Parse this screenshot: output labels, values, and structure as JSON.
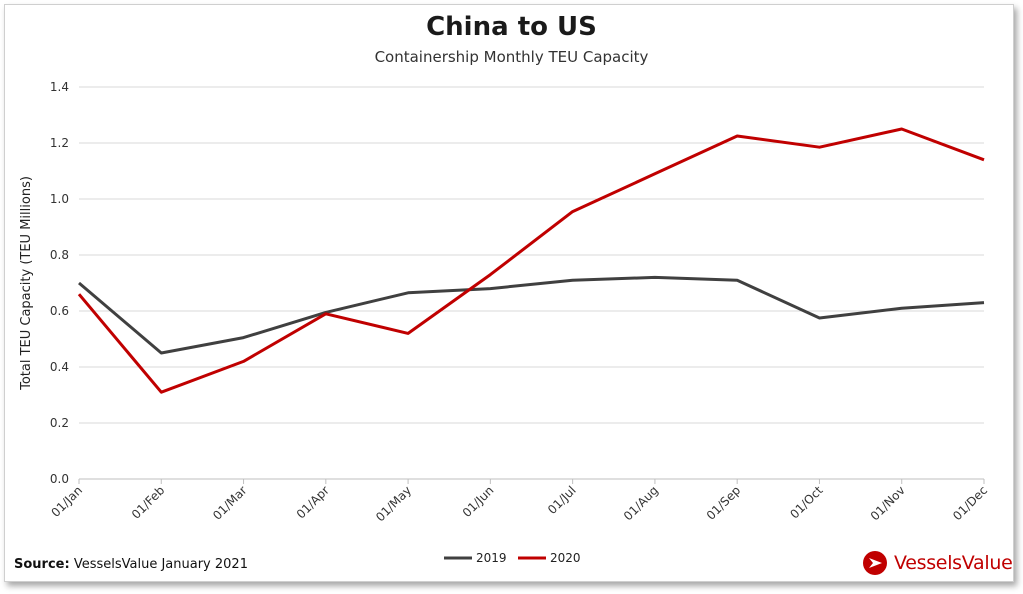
{
  "chart_data": {
    "type": "line",
    "title": "China to US",
    "subtitle": "Containership Monthly TEU Capacity",
    "xlabel": "",
    "ylabel": "Total TEU Capacity (TEU Millions)",
    "categories": [
      "01/Jan",
      "01/Feb",
      "01/Mar",
      "01/Apr",
      "01/May",
      "01/Jun",
      "01/Jul",
      "01/Aug",
      "01/Sep",
      "01/Oct",
      "01/Nov",
      "01/Dec"
    ],
    "ylim": [
      0,
      1.4
    ],
    "yticks": [
      "0.0",
      "0.2",
      "0.4",
      "0.6",
      "0.8",
      "1.0",
      "1.2",
      "1.4"
    ],
    "grid": true,
    "legend_position": "bottom",
    "series": [
      {
        "name": "2019",
        "color": "#404040",
        "values": [
          0.7,
          0.45,
          0.505,
          0.595,
          0.665,
          0.68,
          0.71,
          0.72,
          0.71,
          0.575,
          0.61,
          0.63
        ]
      },
      {
        "name": "2020",
        "color": "#c00000",
        "values": [
          0.66,
          0.31,
          0.42,
          0.59,
          0.52,
          0.73,
          0.955,
          1.09,
          1.225,
          1.185,
          1.25,
          1.14
        ]
      }
    ]
  },
  "footer": {
    "source_label": "Source:",
    "source_text": "VesselsValue January 2021"
  },
  "logo": {
    "text": "VesselsValue",
    "color": "#c00000"
  }
}
